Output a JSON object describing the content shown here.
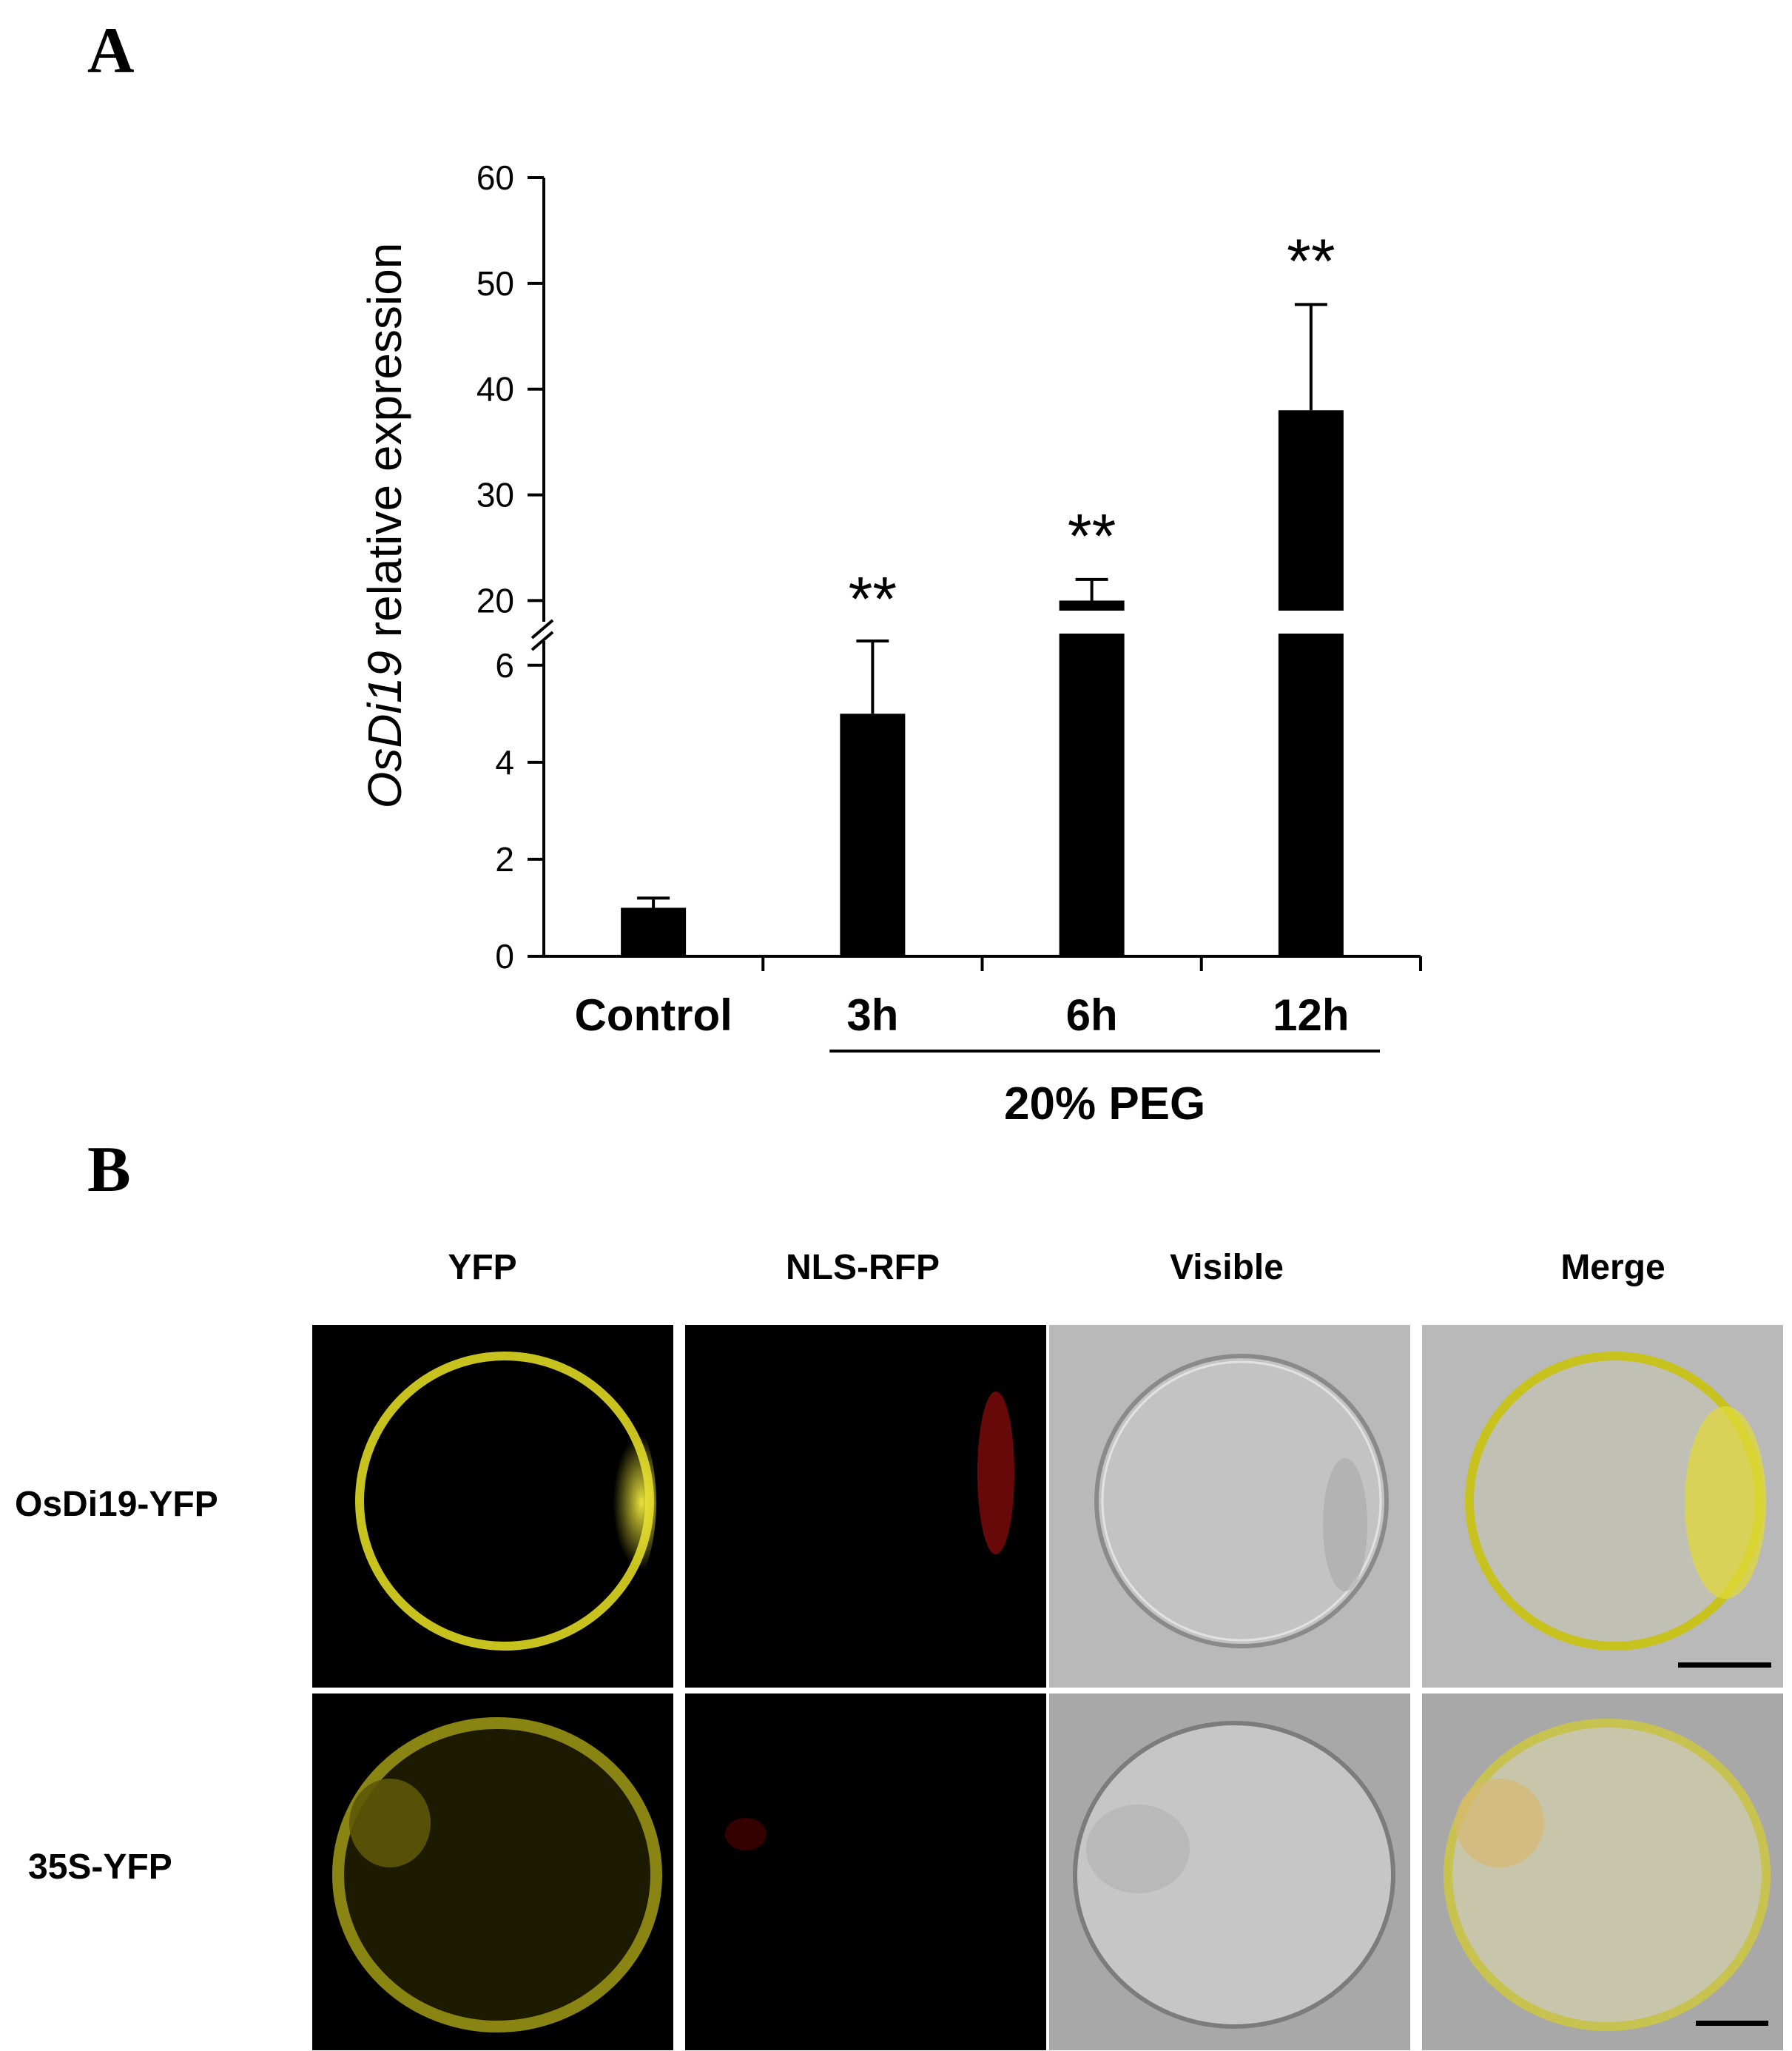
{
  "panel_a": {
    "label": "A",
    "chart_data": {
      "type": "bar",
      "ylabel_italic": "OsDi19",
      "ylabel_rest": " relative expression",
      "categories": [
        "Control",
        "3h",
        "6h",
        "12h"
      ],
      "values": [
        1.0,
        5.0,
        20.0,
        38.0
      ],
      "errors": [
        0.2,
        1.5,
        2.0,
        10.0
      ],
      "significance": [
        "",
        "**",
        "**",
        "**"
      ],
      "group_label": "20% PEG",
      "broken_axis": true,
      "lower_segment": {
        "range": [
          0,
          6.5
        ],
        "ticks": [
          "0",
          "2",
          "4",
          "6"
        ]
      },
      "upper_segment": {
        "range": [
          18,
          60
        ],
        "ticks": [
          "20",
          "30",
          "40",
          "50",
          "60"
        ]
      },
      "bar_color": "#000000"
    }
  },
  "panel_b": {
    "label": "B",
    "columns": [
      "YFP",
      "NLS-RFP",
      "Visible",
      "Merge"
    ],
    "rows": [
      "OsDi19-YFP",
      "35S-YFP"
    ]
  }
}
